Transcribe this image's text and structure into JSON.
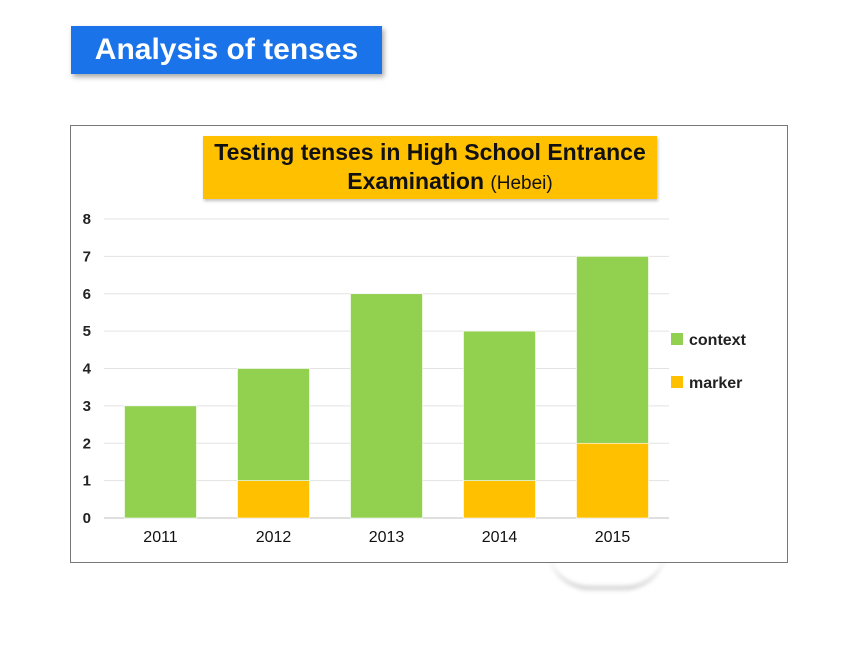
{
  "header": {
    "title": "Analysis of tenses"
  },
  "chart_data": {
    "type": "bar",
    "stacked": true,
    "title": "Testing tenses in High School Entrance Examination",
    "subtitle": "(Hebei)",
    "categories": [
      "2011",
      "2012",
      "2013",
      "2014",
      "2015"
    ],
    "series": [
      {
        "name": "marker",
        "values": [
          0,
          1,
          0,
          1,
          2
        ],
        "color": "#ffc000"
      },
      {
        "name": "context",
        "values": [
          3,
          3,
          6,
          4,
          5
        ],
        "color": "#92d050"
      }
    ],
    "ylim": [
      0,
      8
    ],
    "yticks": [
      "0",
      "1",
      "2",
      "3",
      "4",
      "5",
      "6",
      "7",
      "8"
    ],
    "grid": true,
    "legend_position": "right",
    "legend_order": [
      "context",
      "marker"
    ]
  }
}
